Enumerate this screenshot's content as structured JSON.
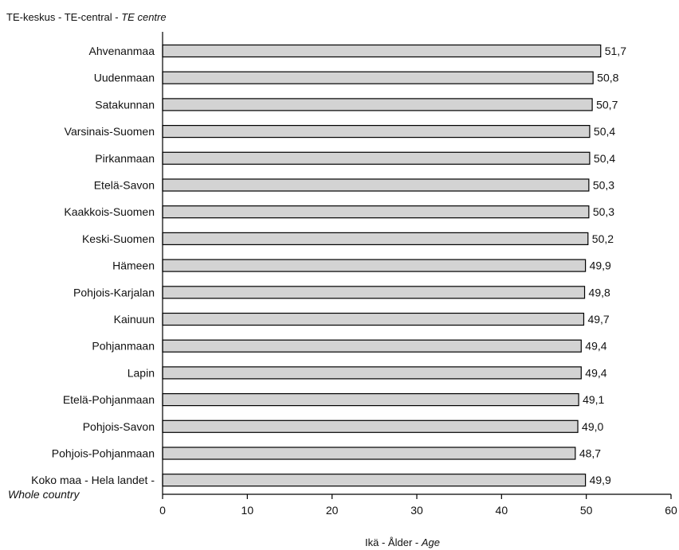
{
  "chart_data": {
    "type": "bar",
    "orientation": "horizontal",
    "header": {
      "part1": "TE-keskus - TE-central - ",
      "part2_italic": "TE centre"
    },
    "categories": [
      "Ahvenanmaa",
      "Uudenmaan",
      "Satakunnan",
      "Varsinais-Suomen",
      "Pirkanmaan",
      "Etelä-Savon",
      "Kaakkois-Suomen",
      "Keski-Suomen",
      "Hämeen",
      "Pohjois-Karjalan",
      "Kainuun",
      "Pohjanmaan",
      "Lapin",
      "Etelä-Pohjanmaan",
      "Pohjois-Savon",
      "Pohjois-Pohjanmaan",
      "Koko maa - Hela landet -"
    ],
    "last_category_line2_italic": "Whole country",
    "values": [
      51.7,
      50.8,
      50.7,
      50.4,
      50.4,
      50.3,
      50.3,
      50.2,
      49.9,
      49.8,
      49.7,
      49.4,
      49.4,
      49.1,
      49.0,
      48.7,
      49.9
    ],
    "value_labels": [
      "51,7",
      "50,8",
      "50,7",
      "50,4",
      "50,4",
      "50,3",
      "50,3",
      "50,2",
      "49,9",
      "49,8",
      "49,7",
      "49,4",
      "49,4",
      "49,1",
      "49,0",
      "48,7",
      "49,9"
    ],
    "xlim": [
      0,
      60
    ],
    "xticks": [
      0,
      10,
      20,
      30,
      40,
      50,
      60
    ],
    "xlabel": {
      "part1": "Ikä - Ålder - ",
      "part2_italic": "Age"
    },
    "grid": false,
    "bar_color": "#d3d3d3",
    "bar_edge_color": "#000000"
  }
}
